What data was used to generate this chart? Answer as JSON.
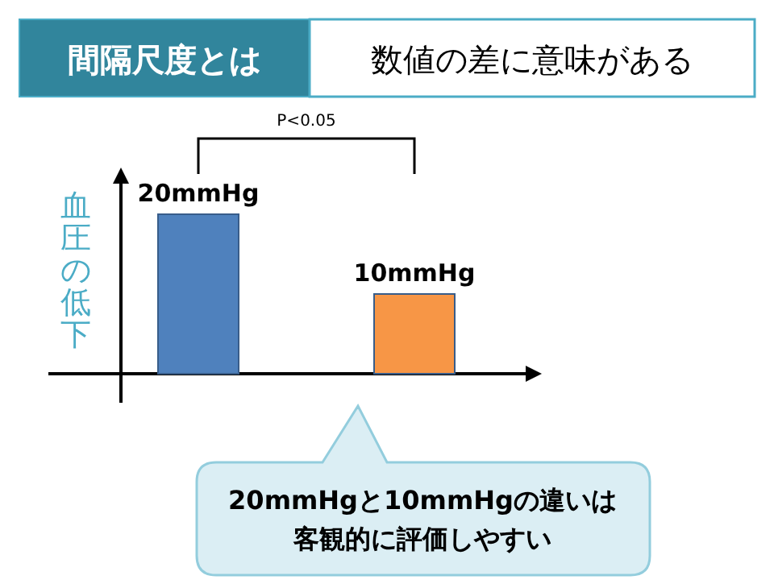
{
  "chart_data": {
    "type": "bar",
    "title": "間隔尺度とは",
    "subtitle": "数値の差に意味がある",
    "ylabel": "血圧の低下",
    "categories": [
      null,
      null
    ],
    "values": [
      20,
      10
    ],
    "colors": [
      "#4f81bd",
      "#f79646"
    ],
    "value_labels": [
      "20mmHg",
      "10mmHg"
    ],
    "annotations": [
      "P<0.05",
      "20mmHgと10mmHgの違いは客観的に評価しやすい"
    ]
  }
}
